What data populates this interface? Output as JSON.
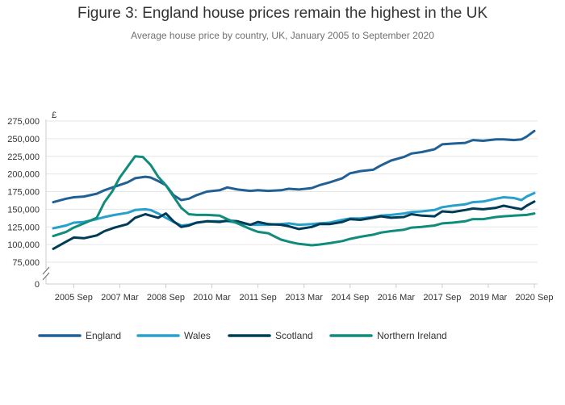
{
  "chart_data": {
    "type": "line",
    "title": "Figure 3: England house prices remain the highest in the UK",
    "subtitle": "Average house price by country, UK, January 2005 to September 2020",
    "ylabel": "£",
    "ylim": [
      0,
      275000
    ],
    "axis_break": "between 0 and 75,000",
    "y_ticks": [
      0,
      75000,
      100000,
      125000,
      150000,
      175000,
      200000,
      225000,
      250000,
      275000
    ],
    "y_tick_labels": [
      "0",
      "75,000",
      "100,000",
      "125,000",
      "150,000",
      "175,000",
      "200,000",
      "225,000",
      "250,000",
      "275,000"
    ],
    "x_ticks": [
      "2005-09",
      "2007-03",
      "2008-09",
      "2010-03",
      "2011-09",
      "2013-03",
      "2014-09",
      "2016-03",
      "2017-09",
      "2019-03",
      "2020-09"
    ],
    "x_tick_labels": [
      "2005 Sep",
      "2007 Mar",
      "2008 Sep",
      "2010 Mar",
      "2011 Sep",
      "2013 Mar",
      "2014 Sep",
      "2016 Mar",
      "2017 Sep",
      "2019 Mar",
      "2020 Sep"
    ],
    "grid": "horizontal",
    "legend_position": "bottom",
    "series": [
      {
        "name": "England",
        "color": "#206095",
        "points": [
          [
            "2005-01",
            160000
          ],
          [
            "2005-06",
            165000
          ],
          [
            "2005-09",
            167000
          ],
          [
            "2006-01",
            168000
          ],
          [
            "2006-06",
            172000
          ],
          [
            "2006-09",
            177000
          ],
          [
            "2007-01",
            182000
          ],
          [
            "2007-06",
            188000
          ],
          [
            "2007-09",
            194000
          ],
          [
            "2008-01",
            196000
          ],
          [
            "2008-03",
            195000
          ],
          [
            "2008-06",
            190000
          ],
          [
            "2008-09",
            184000
          ],
          [
            "2008-12",
            170000
          ],
          [
            "2009-03",
            163000
          ],
          [
            "2009-06",
            165000
          ],
          [
            "2009-09",
            170000
          ],
          [
            "2010-01",
            175000
          ],
          [
            "2010-06",
            177000
          ],
          [
            "2010-09",
            181000
          ],
          [
            "2011-01",
            178000
          ],
          [
            "2011-06",
            176000
          ],
          [
            "2011-09",
            177000
          ],
          [
            "2012-01",
            176000
          ],
          [
            "2012-06",
            177000
          ],
          [
            "2012-09",
            179000
          ],
          [
            "2013-01",
            178000
          ],
          [
            "2013-06",
            180000
          ],
          [
            "2013-09",
            184000
          ],
          [
            "2014-01",
            188000
          ],
          [
            "2014-06",
            194000
          ],
          [
            "2014-09",
            201000
          ],
          [
            "2015-01",
            204000
          ],
          [
            "2015-06",
            206000
          ],
          [
            "2015-09",
            212000
          ],
          [
            "2016-01",
            219000
          ],
          [
            "2016-06",
            224000
          ],
          [
            "2016-09",
            229000
          ],
          [
            "2017-01",
            231000
          ],
          [
            "2017-06",
            235000
          ],
          [
            "2017-09",
            242000
          ],
          [
            "2018-01",
            243000
          ],
          [
            "2018-06",
            244000
          ],
          [
            "2018-09",
            248000
          ],
          [
            "2019-01",
            247000
          ],
          [
            "2019-06",
            249000
          ],
          [
            "2019-09",
            249000
          ],
          [
            "2020-01",
            248000
          ],
          [
            "2020-04",
            249000
          ],
          [
            "2020-06",
            253000
          ],
          [
            "2020-09",
            261000
          ]
        ]
      },
      {
        "name": "Wales",
        "color": "#27a0cc",
        "points": [
          [
            "2005-01",
            123000
          ],
          [
            "2005-06",
            127000
          ],
          [
            "2005-09",
            131000
          ],
          [
            "2006-01",
            132000
          ],
          [
            "2006-06",
            136000
          ],
          [
            "2006-09",
            139000
          ],
          [
            "2007-01",
            142000
          ],
          [
            "2007-06",
            145000
          ],
          [
            "2007-09",
            149000
          ],
          [
            "2008-01",
            150000
          ],
          [
            "2008-03",
            149000
          ],
          [
            "2008-06",
            144000
          ],
          [
            "2008-09",
            138000
          ],
          [
            "2008-12",
            132000
          ],
          [
            "2009-03",
            127000
          ],
          [
            "2009-06",
            128000
          ],
          [
            "2009-09",
            131000
          ],
          [
            "2010-01",
            133000
          ],
          [
            "2010-06",
            133000
          ],
          [
            "2010-09",
            133000
          ],
          [
            "2011-01",
            131000
          ],
          [
            "2011-06",
            128000
          ],
          [
            "2011-09",
            128000
          ],
          [
            "2012-01",
            128000
          ],
          [
            "2012-06",
            129000
          ],
          [
            "2012-09",
            130000
          ],
          [
            "2013-01",
            128000
          ],
          [
            "2013-06",
            129000
          ],
          [
            "2013-09",
            130000
          ],
          [
            "2014-01",
            131000
          ],
          [
            "2014-06",
            135000
          ],
          [
            "2014-09",
            137000
          ],
          [
            "2015-01",
            137000
          ],
          [
            "2015-06",
            139000
          ],
          [
            "2015-09",
            141000
          ],
          [
            "2016-01",
            142000
          ],
          [
            "2016-06",
            144000
          ],
          [
            "2016-09",
            146000
          ],
          [
            "2017-01",
            147000
          ],
          [
            "2017-06",
            149000
          ],
          [
            "2017-09",
            153000
          ],
          [
            "2018-01",
            155000
          ],
          [
            "2018-06",
            157000
          ],
          [
            "2018-09",
            160000
          ],
          [
            "2019-01",
            161000
          ],
          [
            "2019-06",
            165000
          ],
          [
            "2019-09",
            167000
          ],
          [
            "2020-01",
            166000
          ],
          [
            "2020-04",
            163000
          ],
          [
            "2020-06",
            168000
          ],
          [
            "2020-09",
            173000
          ]
        ]
      },
      {
        "name": "Scotland",
        "color": "#003c57",
        "points": [
          [
            "2005-01",
            94000
          ],
          [
            "2005-06",
            104000
          ],
          [
            "2005-09",
            110000
          ],
          [
            "2006-01",
            109000
          ],
          [
            "2006-06",
            113000
          ],
          [
            "2006-09",
            119000
          ],
          [
            "2007-01",
            124000
          ],
          [
            "2007-06",
            129000
          ],
          [
            "2007-09",
            138000
          ],
          [
            "2008-01",
            143000
          ],
          [
            "2008-03",
            141000
          ],
          [
            "2008-06",
            138000
          ],
          [
            "2008-09",
            144000
          ],
          [
            "2008-12",
            133000
          ],
          [
            "2009-03",
            125000
          ],
          [
            "2009-06",
            127000
          ],
          [
            "2009-09",
            131000
          ],
          [
            "2010-01",
            133000
          ],
          [
            "2010-06",
            132000
          ],
          [
            "2010-09",
            134000
          ],
          [
            "2011-01",
            133000
          ],
          [
            "2011-06",
            128000
          ],
          [
            "2011-09",
            132000
          ],
          [
            "2012-01",
            129000
          ],
          [
            "2012-06",
            128000
          ],
          [
            "2012-09",
            126000
          ],
          [
            "2013-01",
            122000
          ],
          [
            "2013-06",
            125000
          ],
          [
            "2013-09",
            129000
          ],
          [
            "2014-01",
            129000
          ],
          [
            "2014-06",
            132000
          ],
          [
            "2014-09",
            136000
          ],
          [
            "2015-01",
            135000
          ],
          [
            "2015-06",
            138000
          ],
          [
            "2015-09",
            140000
          ],
          [
            "2016-01",
            138000
          ],
          [
            "2016-06",
            139000
          ],
          [
            "2016-09",
            143000
          ],
          [
            "2017-01",
            141000
          ],
          [
            "2017-06",
            140000
          ],
          [
            "2017-09",
            147000
          ],
          [
            "2018-01",
            146000
          ],
          [
            "2018-06",
            149000
          ],
          [
            "2018-09",
            151000
          ],
          [
            "2019-01",
            150000
          ],
          [
            "2019-06",
            152000
          ],
          [
            "2019-09",
            155000
          ],
          [
            "2020-01",
            152000
          ],
          [
            "2020-04",
            150000
          ],
          [
            "2020-06",
            155000
          ],
          [
            "2020-09",
            161000
          ]
        ]
      },
      {
        "name": "Northern Ireland",
        "color": "#118c7b",
        "points": [
          [
            "2005-01",
            112000
          ],
          [
            "2005-06",
            118000
          ],
          [
            "2005-09",
            124000
          ],
          [
            "2006-01",
            130000
          ],
          [
            "2006-06",
            138000
          ],
          [
            "2006-09",
            160000
          ],
          [
            "2006-12",
            175000
          ],
          [
            "2007-03",
            195000
          ],
          [
            "2007-06",
            210000
          ],
          [
            "2007-09",
            225000
          ],
          [
            "2007-12",
            224000
          ],
          [
            "2008-03",
            213000
          ],
          [
            "2008-06",
            196000
          ],
          [
            "2008-09",
            184000
          ],
          [
            "2008-12",
            168000
          ],
          [
            "2009-03",
            152000
          ],
          [
            "2009-06",
            143000
          ],
          [
            "2009-09",
            142000
          ],
          [
            "2010-01",
            142000
          ],
          [
            "2010-06",
            141000
          ],
          [
            "2010-09",
            136000
          ],
          [
            "2011-01",
            130000
          ],
          [
            "2011-06",
            122000
          ],
          [
            "2011-09",
            118000
          ],
          [
            "2012-01",
            116000
          ],
          [
            "2012-06",
            107000
          ],
          [
            "2012-09",
            104000
          ],
          [
            "2013-01",
            101000
          ],
          [
            "2013-06",
            99000
          ],
          [
            "2013-09",
            100000
          ],
          [
            "2014-01",
            102000
          ],
          [
            "2014-06",
            105000
          ],
          [
            "2014-09",
            108000
          ],
          [
            "2015-01",
            111000
          ],
          [
            "2015-06",
            114000
          ],
          [
            "2015-09",
            117000
          ],
          [
            "2016-01",
            119000
          ],
          [
            "2016-06",
            121000
          ],
          [
            "2016-09",
            124000
          ],
          [
            "2017-01",
            125000
          ],
          [
            "2017-06",
            127000
          ],
          [
            "2017-09",
            130000
          ],
          [
            "2018-01",
            131000
          ],
          [
            "2018-06",
            133000
          ],
          [
            "2018-09",
            136000
          ],
          [
            "2019-01",
            136000
          ],
          [
            "2019-06",
            139000
          ],
          [
            "2019-09",
            140000
          ],
          [
            "2020-01",
            141000
          ],
          [
            "2020-06",
            142000
          ],
          [
            "2020-09",
            144000
          ]
        ]
      }
    ]
  }
}
